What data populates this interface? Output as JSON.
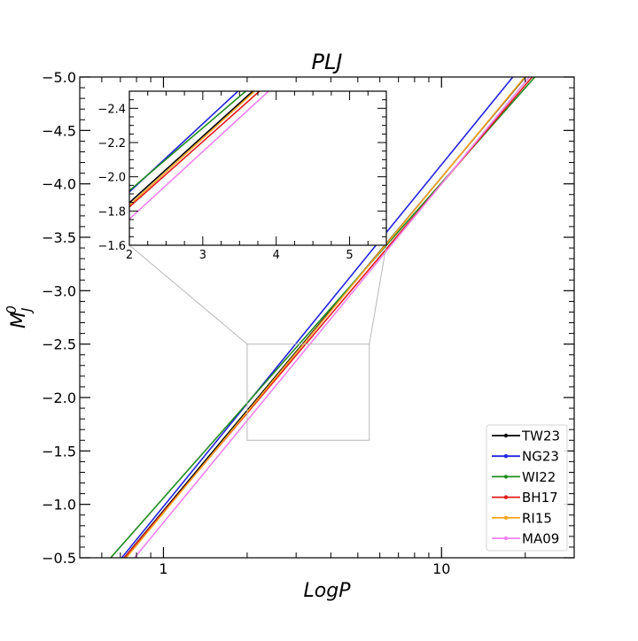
{
  "chart_data": {
    "type": "line",
    "title": "PLJ",
    "xlabel": "LogP",
    "ylabel": "M_J^0",
    "ylabel_main": "M",
    "ylabel_sup": "0",
    "ylabel_sub": "J",
    "x_scale": "log",
    "xlim": [
      0.5,
      30
    ],
    "ylim": [
      -0.5,
      -5.0
    ],
    "y_inverted": true,
    "x_major_ticks": [
      1,
      10
    ],
    "x_tick_labels": [
      "1",
      "10"
    ],
    "y_ticks": [
      -0.5,
      -1.0,
      -1.5,
      -2.0,
      -2.5,
      -3.0,
      -3.5,
      -4.0,
      -4.5,
      -5.0
    ],
    "y_tick_labels": [
      "−0.5",
      "−1.0",
      "−1.5",
      "−2.0",
      "−2.5",
      "−3.0",
      "−3.5",
      "−4.0",
      "−4.5",
      "−5.0"
    ],
    "legend_position": "lower-right",
    "series": [
      {
        "name": "TW23",
        "color": "#000000",
        "slope": -3.12,
        "intercept": -0.94
      },
      {
        "name": "NG23",
        "color": "#2323e0",
        "slope": -3.2,
        "intercept": -0.98
      },
      {
        "name": "WI22",
        "color": "#228b22",
        "slope": -2.95,
        "intercept": -1.06
      },
      {
        "name": "BH17",
        "color": "#e31a1a",
        "slope": -3.07,
        "intercept": -0.93
      },
      {
        "name": "RI15",
        "color": "#f5a623",
        "slope": -3.14,
        "intercept": -0.92
      },
      {
        "name": "MA09",
        "color": "#ee82ee",
        "slope": -3.17,
        "intercept": -0.83
      }
    ],
    "inset": {
      "xlim": [
        2,
        5.5
      ],
      "ylim": [
        -1.6,
        -2.5
      ],
      "x_ticks": [
        2,
        3,
        4,
        5
      ],
      "x_tick_labels": [
        "2",
        "3",
        "4",
        "5"
      ],
      "y_ticks": [
        -1.6,
        -1.8,
        -2.0,
        -2.2,
        -2.4
      ],
      "y_tick_labels": [
        "−1.6",
        "−1.8",
        "−2.0",
        "−2.2",
        "−2.4"
      ]
    }
  }
}
